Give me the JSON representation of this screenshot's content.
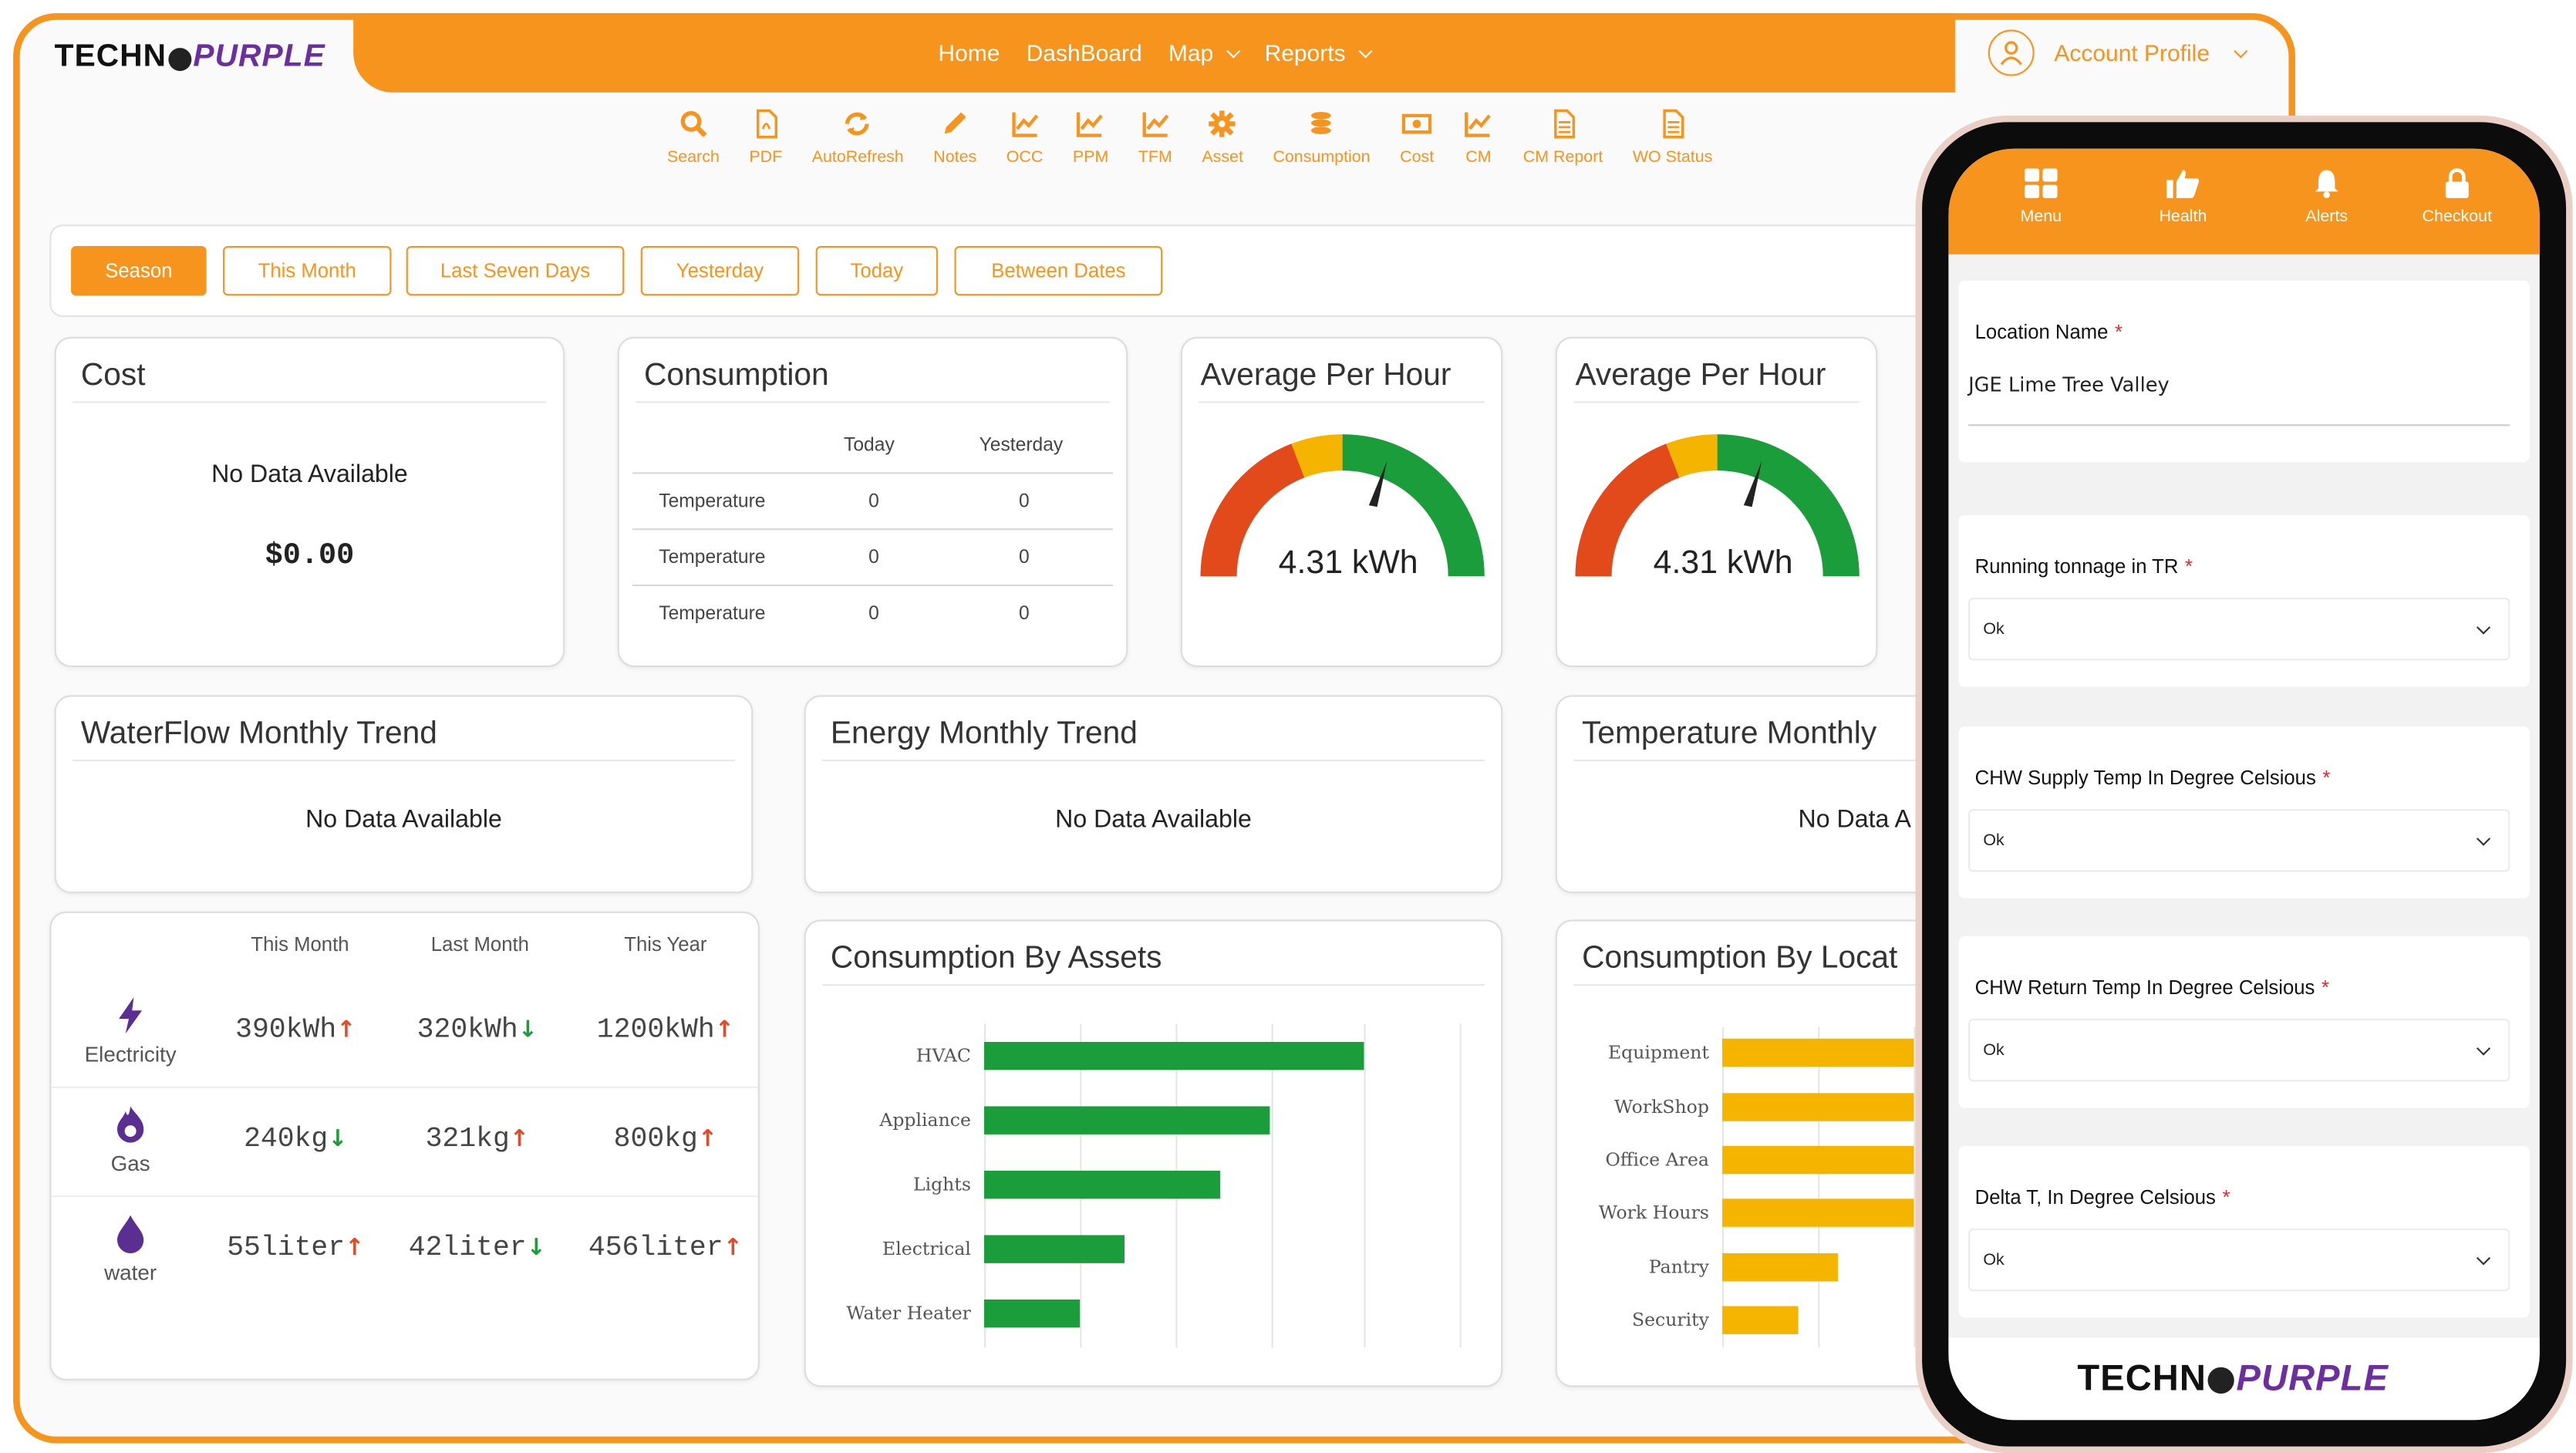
{
  "brand": {
    "part1": "TECHN",
    "part2": "PURPLE"
  },
  "nav": {
    "home": "Home",
    "dashboard": "DashBoard",
    "map": "Map",
    "reports": "Reports"
  },
  "account": {
    "label": "Account Profile"
  },
  "toolbar": [
    {
      "label": "Search",
      "icon": "search-icon"
    },
    {
      "label": "PDF",
      "icon": "pdf-icon"
    },
    {
      "label": "AutoRefresh",
      "icon": "refresh-icon"
    },
    {
      "label": "Notes",
      "icon": "pencil-icon"
    },
    {
      "label": "OCC",
      "icon": "chart-icon"
    },
    {
      "label": "PPM",
      "icon": "chart-icon"
    },
    {
      "label": "TFM",
      "icon": "chart-icon"
    },
    {
      "label": "Asset",
      "icon": "gear-icon"
    },
    {
      "label": "Consumption",
      "icon": "coins-icon"
    },
    {
      "label": "Cost",
      "icon": "money-icon"
    },
    {
      "label": "CM",
      "icon": "chart-icon"
    },
    {
      "label": "CM Report",
      "icon": "document-icon"
    },
    {
      "label": "WO Status",
      "icon": "document-icon"
    }
  ],
  "filters": {
    "season": "Season",
    "this_month": "This Month",
    "last_seven": "Last Seven Days",
    "yesterday": "Yesterday",
    "today": "Today",
    "between": "Between Dates"
  },
  "cost": {
    "title": "Cost",
    "no_data": "No Data Available",
    "amount": "$0.00"
  },
  "consumption": {
    "title": "Consumption",
    "col_today": "Today",
    "col_yesterday": "Yesterday",
    "rows": [
      {
        "label": "Temperature",
        "today": "0",
        "yesterday": "0"
      },
      {
        "label": "Temperature",
        "today": "0",
        "yesterday": "0"
      },
      {
        "label": "Temperature",
        "today": "0",
        "yesterday": "0"
      }
    ]
  },
  "gauge1": {
    "title": "Average Per Hour",
    "value": "4.31 kWh"
  },
  "gauge2": {
    "title": "Average Per Hour",
    "value": "4.31 kWh"
  },
  "waterflow": {
    "title": "WaterFlow Monthly Trend",
    "no_data": "No Data Available"
  },
  "energy": {
    "title": "Energy Monthly Trend",
    "no_data": "No Data Available"
  },
  "temperature": {
    "title": "Temperature Monthly",
    "no_data": "No Data A"
  },
  "stats": {
    "headers": {
      "this_month": "This Month",
      "last_month": "Last Month",
      "this_year": "This Year"
    },
    "rows": [
      {
        "name": "Electricity",
        "icon": "lightning-icon",
        "this_month": "390kWh",
        "last_month": "320kWh",
        "this_year": "1200kWh",
        "trends": [
          "up",
          "down",
          "up"
        ]
      },
      {
        "name": "Gas",
        "icon": "flame-icon",
        "this_month": "240kg",
        "last_month": "321kg",
        "this_year": "800kg",
        "trends": [
          "down",
          "up",
          "up"
        ]
      },
      {
        "name": "water",
        "icon": "water-drop-icon",
        "this_month": "55liter",
        "last_month": "42liter",
        "this_year": "456liter",
        "trends": [
          "up",
          "down",
          "up"
        ]
      }
    ]
  },
  "assets_chart": {
    "title": "Consumption By Assets"
  },
  "location_chart": {
    "title": "Consumption By Locat"
  },
  "chart_data": [
    {
      "type": "bar",
      "orientation": "horizontal",
      "title": "Consumption By Assets",
      "categories": [
        "HVAC",
        "Appliance",
        "Lights",
        "Electrical",
        "Water Heater"
      ],
      "values": [
        100,
        75,
        62,
        37,
        25
      ],
      "xlim": [
        0,
        125
      ],
      "color": "#1a9d3a",
      "grid": true
    },
    {
      "type": "bar",
      "orientation": "horizontal",
      "title": "Consumption By Locat",
      "categories": [
        "Equipment",
        "WorkShop",
        "Office Area",
        "Work Hours",
        "Pantry",
        "Security"
      ],
      "values": [
        100,
        100,
        100,
        100,
        60,
        40
      ],
      "xlim": [
        0,
        125
      ],
      "color": "#f5b400",
      "grid": true
    }
  ],
  "phone": {
    "tabs": [
      {
        "label": "Menu",
        "icon": "grid-icon"
      },
      {
        "label": "Health",
        "icon": "thumbs-up-icon"
      },
      {
        "label": "Alerts",
        "icon": "bell-icon"
      },
      {
        "label": "Checkout",
        "icon": "lock-icon"
      }
    ],
    "location_label": "Location Name",
    "location_value": "JGE Lime Tree Valley",
    "fields": [
      {
        "label": "Running tonnage in TR",
        "value": "Ok"
      },
      {
        "label": "CHW Supply Temp In Degree Celsious",
        "value": "Ok"
      },
      {
        "label": "CHW Return Temp In Degree Celsious",
        "value": "Ok"
      },
      {
        "label": "Delta T, In Degree Celsious",
        "value": "Ok"
      }
    ],
    "required_mark": "*"
  },
  "colors": {
    "accent": "#f7941d",
    "purple": "#6b2fa0",
    "green": "#1a9d3a",
    "yellow": "#f5b400",
    "red": "#e24a2a"
  }
}
